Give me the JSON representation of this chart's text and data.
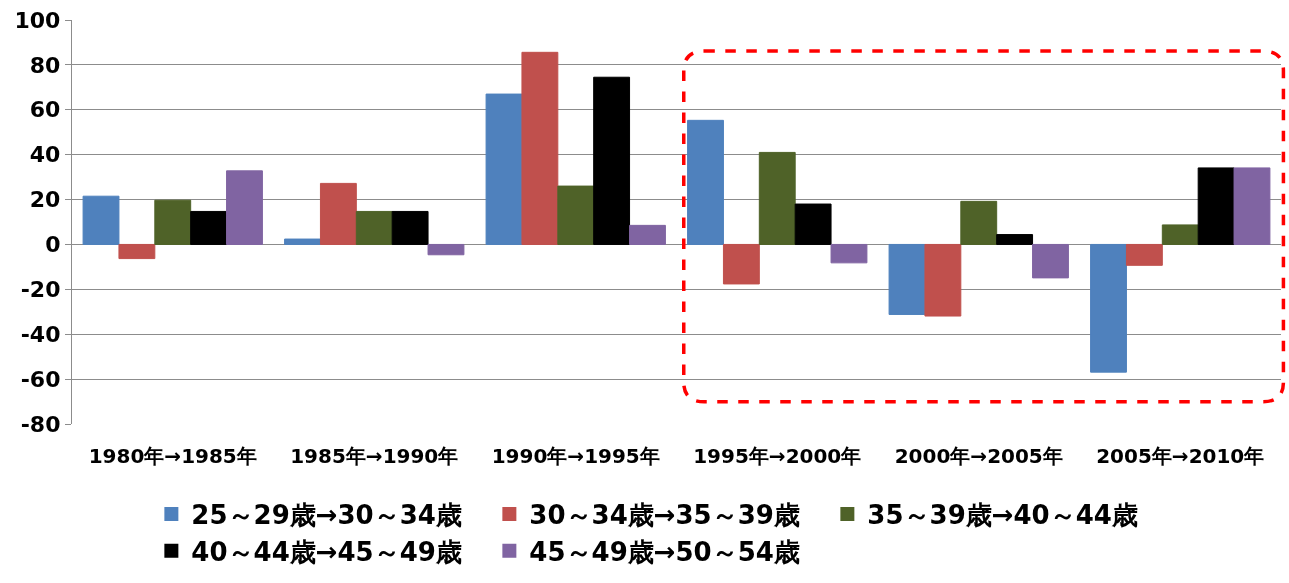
{
  "chart_data": {
    "type": "bar",
    "categories": [
      "1980年→1985年",
      "1985年→1990年",
      "1990年→1995年",
      "1995年→2000年",
      "2000年→2005年",
      "2005年→2010年"
    ],
    "series": [
      {
        "name": "25～29歳→30～34歳",
        "color": "#4f81bd",
        "values": [
          21.5,
          2.4,
          67.0,
          55.3,
          -31.2,
          -56.9
        ]
      },
      {
        "name": "30～34歳→35～39歳",
        "color": "#c0504d",
        "values": [
          -6.3,
          27.2,
          85.6,
          -17.6,
          -31.9,
          -9.3
        ]
      },
      {
        "name": "35～39歳→40～44歳",
        "color": "#4f6228",
        "values": [
          19.7,
          14.7,
          26.0,
          41.0,
          19.2,
          8.7
        ]
      },
      {
        "name": "40～44歳→45～49歳",
        "color": "#000000",
        "values": [
          14.7,
          14.7,
          74.5,
          18.0,
          4.4,
          34.1
        ]
      },
      {
        "name": "45～49歳→50～54歳",
        "color": "#8064a2",
        "values": [
          32.8,
          -4.6,
          8.5,
          -8.2,
          -14.9,
          34.1
        ]
      }
    ],
    "ylim": [
      -80,
      100
    ],
    "yticks": [
      -80,
      -60,
      -40,
      -20,
      0,
      20,
      40,
      60,
      80,
      100
    ],
    "grid": "y",
    "legend": "bottom"
  }
}
